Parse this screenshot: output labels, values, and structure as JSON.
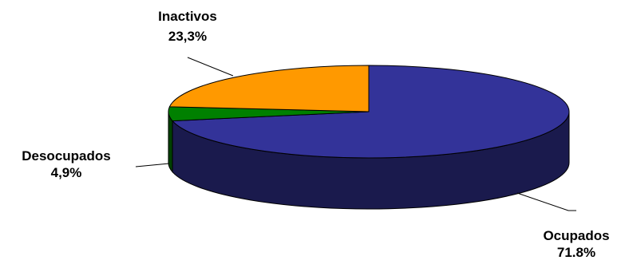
{
  "chart_data": {
    "type": "pie",
    "style": "3d",
    "slices": [
      {
        "label": "Ocupados",
        "value_label": "71.8%",
        "value": 71.8,
        "color": "#333399"
      },
      {
        "label": "Desocupados",
        "value_label": "4,9%",
        "value": 4.9,
        "color": "#008000"
      },
      {
        "label": "Inactivos",
        "value_label": "23,3%",
        "value": 23.3,
        "color": "#ff9900"
      }
    ],
    "legend": "none"
  }
}
